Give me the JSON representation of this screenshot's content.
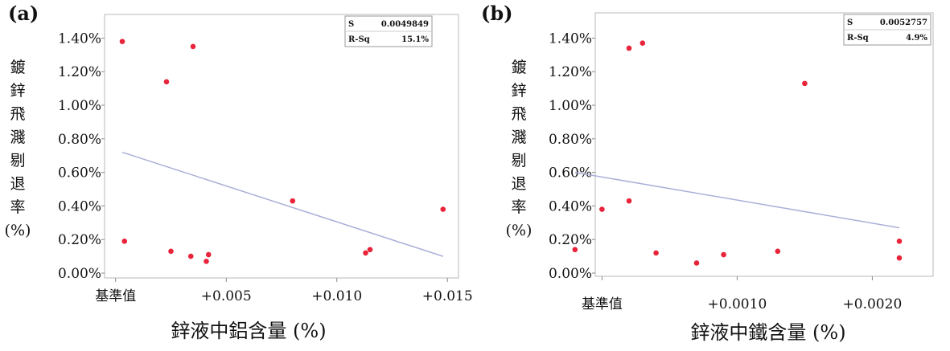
{
  "chart_data": [
    {
      "type": "scatter",
      "panel_label": "(a)",
      "xlabel": "鋅液中鋁含量 (%)",
      "ylabel_chars": [
        "鍍",
        "鋅",
        "飛",
        "濺",
        "剔",
        "退",
        "率"
      ],
      "ylabel_unit": "(%)",
      "ylim": [
        0,
        0.0145
      ],
      "xlim": [
        -0.0005,
        0.0155
      ],
      "y_ticks": [
        {
          "value": 0.0,
          "label": "0.00%"
        },
        {
          "value": 0.002,
          "label": "0.20%"
        },
        {
          "value": 0.004,
          "label": "0.40%"
        },
        {
          "value": 0.006,
          "label": "0.60%"
        },
        {
          "value": 0.008,
          "label": "0.80%"
        },
        {
          "value": 0.01,
          "label": "1.00%"
        },
        {
          "value": 0.012,
          "label": "1.20%"
        },
        {
          "value": 0.014,
          "label": "1.40%"
        }
      ],
      "x_ticks": [
        {
          "value": 0.0,
          "label": "基準值"
        },
        {
          "value": 0.005,
          "label": "+0.005"
        },
        {
          "value": 0.01,
          "label": "+0.010"
        },
        {
          "value": 0.015,
          "label": "+0.015"
        }
      ],
      "points": [
        {
          "x": 0.0003,
          "y": 0.0138
        },
        {
          "x": 0.0004,
          "y": 0.0019
        },
        {
          "x": 0.0023,
          "y": 0.0114
        },
        {
          "x": 0.0025,
          "y": 0.0013
        },
        {
          "x": 0.0034,
          "y": 0.001
        },
        {
          "x": 0.0035,
          "y": 0.0135
        },
        {
          "x": 0.0041,
          "y": 0.0007
        },
        {
          "x": 0.0042,
          "y": 0.0011
        },
        {
          "x": 0.008,
          "y": 0.0043
        },
        {
          "x": 0.0113,
          "y": 0.0012
        },
        {
          "x": 0.0115,
          "y": 0.0014
        },
        {
          "x": 0.0148,
          "y": 0.0038
        }
      ],
      "fit_line": [
        {
          "x": 0.0003,
          "y": 0.0072
        },
        {
          "x": 0.0148,
          "y": 0.001
        }
      ],
      "stats": [
        {
          "label": "S",
          "value": "0.0049849"
        },
        {
          "label": "R-Sq",
          "value": "15.1%"
        }
      ],
      "colors": {
        "point": "#e8233a",
        "fit_line": "#aab0d8",
        "frame": "#b8b8b8"
      }
    },
    {
      "type": "scatter",
      "panel_label": "(b)",
      "xlabel": "鋅液中鐵含量 (%)",
      "ylabel_chars": [
        "鍍",
        "鋅",
        "飛",
        "濺",
        "剔",
        "退",
        "率"
      ],
      "ylabel_unit": "(%)",
      "ylim": [
        0,
        0.0145
      ],
      "xlim": [
        -5e-05,
        0.00245
      ],
      "y_ticks": [
        {
          "value": 0.0,
          "label": "0.00%"
        },
        {
          "value": 0.002,
          "label": "0.20%"
        },
        {
          "value": 0.004,
          "label": "0.40%"
        },
        {
          "value": 0.006,
          "label": "0.60%"
        },
        {
          "value": 0.008,
          "label": "0.80%"
        },
        {
          "value": 0.01,
          "label": "1.00%"
        },
        {
          "value": 0.012,
          "label": "1.20%"
        },
        {
          "value": 0.014,
          "label": "1.40%"
        }
      ],
      "x_ticks": [
        {
          "value": 0.0,
          "label": "基準值"
        },
        {
          "value": 0.001,
          "label": "+0.0010"
        },
        {
          "value": 0.002,
          "label": "+0.0020"
        }
      ],
      "points": [
        {
          "x": -0.0002,
          "y": 0.0014
        },
        {
          "x": 0.0,
          "y": 0.0038
        },
        {
          "x": 0.0002,
          "y": 0.0134
        },
        {
          "x": 0.0002,
          "y": 0.0043
        },
        {
          "x": 0.0003,
          "y": 0.0137
        },
        {
          "x": 0.0004,
          "y": 0.0012
        },
        {
          "x": 0.0007,
          "y": 0.0006
        },
        {
          "x": 0.0009,
          "y": 0.0011
        },
        {
          "x": 0.0013,
          "y": 0.0013
        },
        {
          "x": 0.0015,
          "y": 0.0113
        },
        {
          "x": 0.0022,
          "y": 0.0019
        },
        {
          "x": 0.0022,
          "y": 0.0009
        }
      ],
      "fit_line": [
        {
          "x": -0.0002,
          "y": 0.006
        },
        {
          "x": 0.0022,
          "y": 0.0027
        }
      ],
      "stats": [
        {
          "label": "S",
          "value": "0.0052757"
        },
        {
          "label": "R-Sq",
          "value": "4.9%"
        }
      ],
      "colors": {
        "point": "#e8233a",
        "fit_line": "#aab0d8",
        "frame": "#b8b8b8"
      }
    }
  ]
}
